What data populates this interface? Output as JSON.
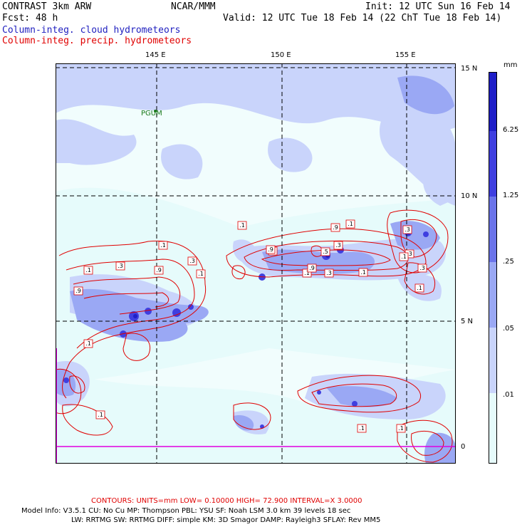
{
  "header": {
    "model": "CONTRAST  3km ARW",
    "org": "NCAR/MMM",
    "init": "Init: 12 UTC Sun 16 Feb 14",
    "fcst": "Fcst:   48 h",
    "valid": "Valid: 12 UTC Tue 18 Feb 14 (22 ChT Tue 18 Feb 14)",
    "field_cloud": "Column-integ. cloud hydrometeors",
    "field_precip": "Column-integ. precip. hydrometeors"
  },
  "colors": {
    "cloud_title": "#1f1fbf",
    "precip_title": "#e00000",
    "shade_1": "#e6fbfb",
    "shade_2": "#c9d4fb",
    "shade_3": "#9aa8f4",
    "shade_4": "#6b74ea",
    "shade_5": "#3f3fe0",
    "shade_6": "#1f1fc8",
    "contour": "#e00000"
  },
  "map": {
    "lon_labels": [
      "145 E",
      "150 E",
      "155 E"
    ],
    "lat_labels": [
      "15 N",
      "10 N",
      "5 N",
      "0"
    ],
    "station": "PGUM"
  },
  "legend": {
    "unit": "mm",
    "labels": [
      "6.25",
      "1.25",
      ".25",
      ".05",
      ".01"
    ]
  },
  "contour_labels": [
    ".1",
    ".3",
    ".1",
    ".9",
    ".3",
    ".1",
    ".9",
    ".1",
    ".1",
    ".5",
    ".9",
    ".1",
    ".9",
    ".1",
    ".3",
    ".5",
    ".9",
    ".3",
    ".1",
    ".3",
    ".3",
    ".1",
    ".3",
    ".1",
    ".1",
    ".1",
    ".1"
  ],
  "footer": {
    "contours": "CONTOURS:  UNITS=mm  LOW= 0.10000      HIGH= 72.900      INTERVAL=X  3.0000",
    "line1": "Model Info: V3.5.1     CU: No Cu     MP: Thompson     PBL: YSU      SF: Noah LSM     3.0 km   39 levels    18 sec",
    "line2": "LW: RRTMG     SW: RRTMG   DIFF: simple KM: 3D Smagor DAMP: Rayleigh3   SFLAY: Rev MM5"
  }
}
